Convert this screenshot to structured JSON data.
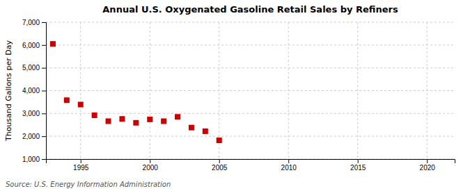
{
  "chart_data": {
    "type": "scatter",
    "title": "Annual U.S. Oxygenated Gasoline Retail Sales by Refiners",
    "ylabel": "Thousand Gallons per Day",
    "annotations": [
      "Source: U.S. Energy Information Administration"
    ],
    "x": [
      1993,
      1994,
      1995,
      1996,
      1997,
      1998,
      1999,
      2000,
      2001,
      2002,
      2003,
      2004,
      2005
    ],
    "values": [
      6050,
      3580,
      3390,
      2920,
      2660,
      2760,
      2590,
      2740,
      2660,
      2850,
      2380,
      2220,
      1820
    ],
    "color": "#cc0000",
    "marker": "square",
    "xlim": [
      1992.5,
      2022
    ],
    "ylim": [
      1000,
      7000
    ],
    "xticks": [
      1995,
      2000,
      2005,
      2010,
      2015,
      2020
    ],
    "yticks": [
      {
        "value": 1000,
        "label": "1,000"
      },
      {
        "value": 2000,
        "label": "2,000"
      },
      {
        "value": 3000,
        "label": "3,000"
      },
      {
        "value": 4000,
        "label": "4,000"
      },
      {
        "value": 5000,
        "label": "5,000"
      },
      {
        "value": 6000,
        "label": "6,000"
      },
      {
        "value": 7000,
        "label": "7,000"
      }
    ],
    "grid": true
  }
}
